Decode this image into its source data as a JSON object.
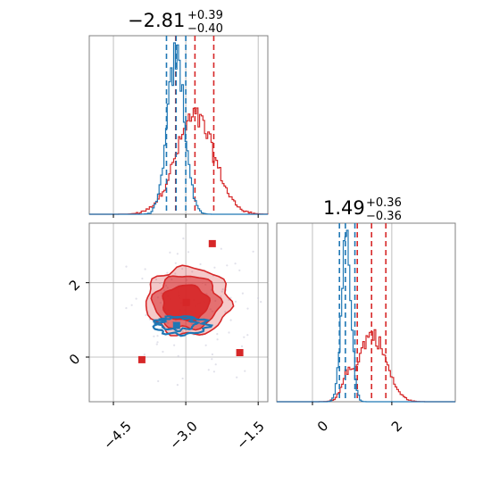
{
  "chart_data": {
    "type": "corner",
    "colors": {
      "red": "#d62728",
      "blue": "#1f77b4",
      "grid": "#b0b0b0",
      "scatter": "#c8c8d8"
    },
    "parameters": [
      {
        "title_main": "−2.81",
        "title_plus": "+0.39",
        "title_minus": "−0.40",
        "range": [
          -5.0,
          -1.3
        ],
        "ticks": [
          -4.5,
          -3.0,
          -1.5
        ],
        "tick_labels": [
          "−4.5",
          "−3.0",
          "−1.5"
        ]
      },
      {
        "title_main": "1.49",
        "title_plus": "+0.36",
        "title_minus": "−0.36",
        "range": [
          -0.9,
          3.6
        ],
        "ticks": [
          0,
          2
        ],
        "tick_labels": [
          "0",
          "2"
        ]
      }
    ],
    "y_axis_2d": {
      "range": [
        -1.2,
        3.6
      ],
      "ticks": [
        0,
        2
      ],
      "tick_labels": [
        "0",
        "2"
      ]
    },
    "series": [
      {
        "color": "red",
        "hist1_mean": -2.81,
        "hist1_sd": 0.4,
        "quantiles_1": [
          -3.21,
          -2.81,
          -2.42
        ],
        "quantiles_2": [
          1.13,
          1.49,
          1.85
        ],
        "hist2_modes": [
          {
            "mean": 1.5,
            "sd": 0.35,
            "w": 0.8
          },
          {
            "mean": 0.85,
            "sd": 0.12,
            "w": 0.2
          }
        ]
      },
      {
        "color": "blue",
        "hist1_mean": -3.2,
        "hist1_sd": 0.18,
        "quantiles_1": [
          -3.4,
          -3.2,
          -3.0
        ],
        "quantiles_2": [
          0.68,
          0.83,
          1.07
        ],
        "hist2_modes": [
          {
            "mean": 0.85,
            "sd": 0.12,
            "w": 1.0
          }
        ]
      }
    ],
    "markers": [
      {
        "color": "red",
        "x": -2.45,
        "y": 3.05
      },
      {
        "color": "red",
        "x": -2.99,
        "y": 1.47
      },
      {
        "color": "red",
        "x": -3.91,
        "y": -0.07
      },
      {
        "color": "red",
        "x": -1.88,
        "y": 0.12
      },
      {
        "color": "blue",
        "x": -3.19,
        "y": 0.85
      }
    ]
  }
}
